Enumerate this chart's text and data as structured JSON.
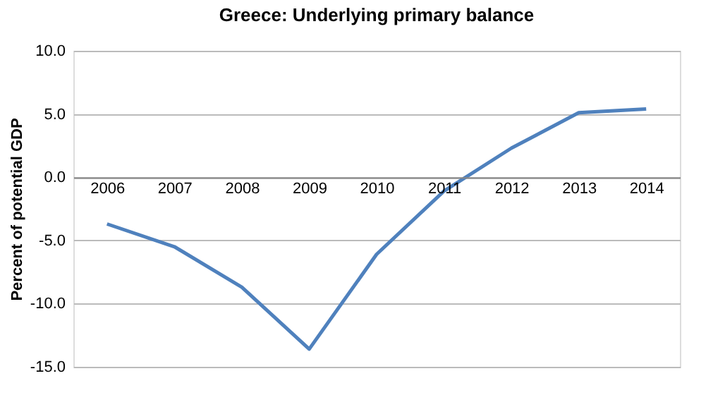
{
  "chart_data": {
    "type": "line",
    "title": "Greece: Underlying primary balance",
    "ylabel": "Percent of potential GDP",
    "categories": [
      "2006",
      "2007",
      "2008",
      "2009",
      "2010",
      "2011",
      "2012",
      "2013",
      "2014"
    ],
    "series": [
      {
        "color": "#4f81bd",
        "values": [
          -3.7,
          -5.5,
          -8.7,
          -13.6,
          -6.1,
          -1.1,
          2.3,
          5.1,
          5.4
        ]
      }
    ],
    "ylim": [
      -15,
      10
    ],
    "yticks": [
      {
        "value": -15,
        "label": "-15.0"
      },
      {
        "value": -10,
        "label": "-10.0"
      },
      {
        "value": -5,
        "label": "-5.0"
      },
      {
        "value": 0,
        "label": "0.0"
      },
      {
        "value": 5,
        "label": "5.0"
      },
      {
        "value": 10,
        "label": "10.0"
      }
    ],
    "grid": "y",
    "marker": "none",
    "line_style": "solid"
  }
}
